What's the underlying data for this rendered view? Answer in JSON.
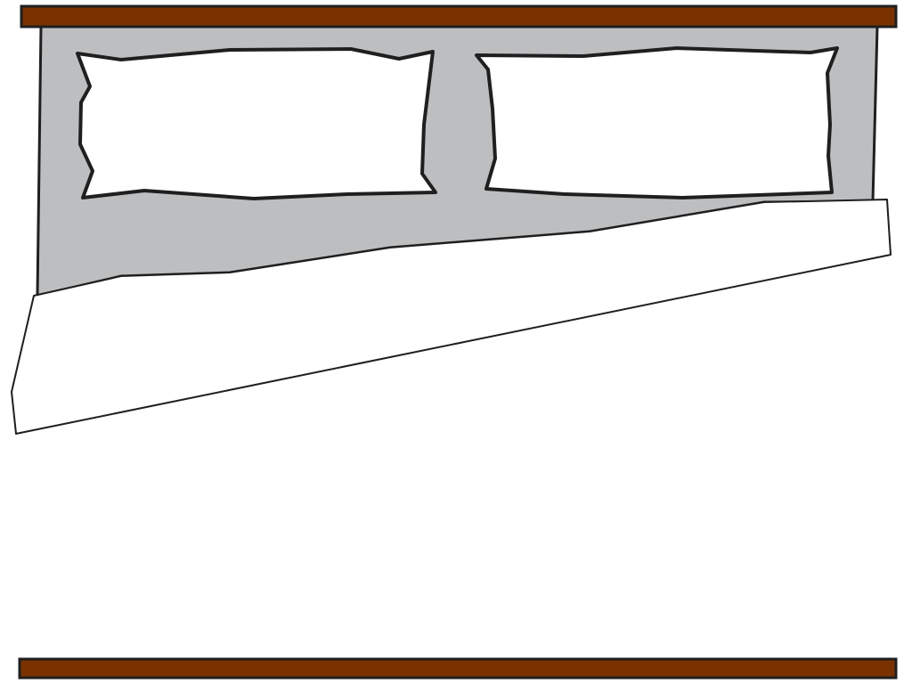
{
  "scene": {
    "colors": {
      "background": "#ffffff",
      "headboard_rail": "#7a3300",
      "footboard_rail": "#7a3300",
      "mattress": "#bdbec0",
      "pillow": "#ffffff",
      "blanket": "#ffffff",
      "outline": "#1f1f1f"
    },
    "pillow_count": 2
  }
}
